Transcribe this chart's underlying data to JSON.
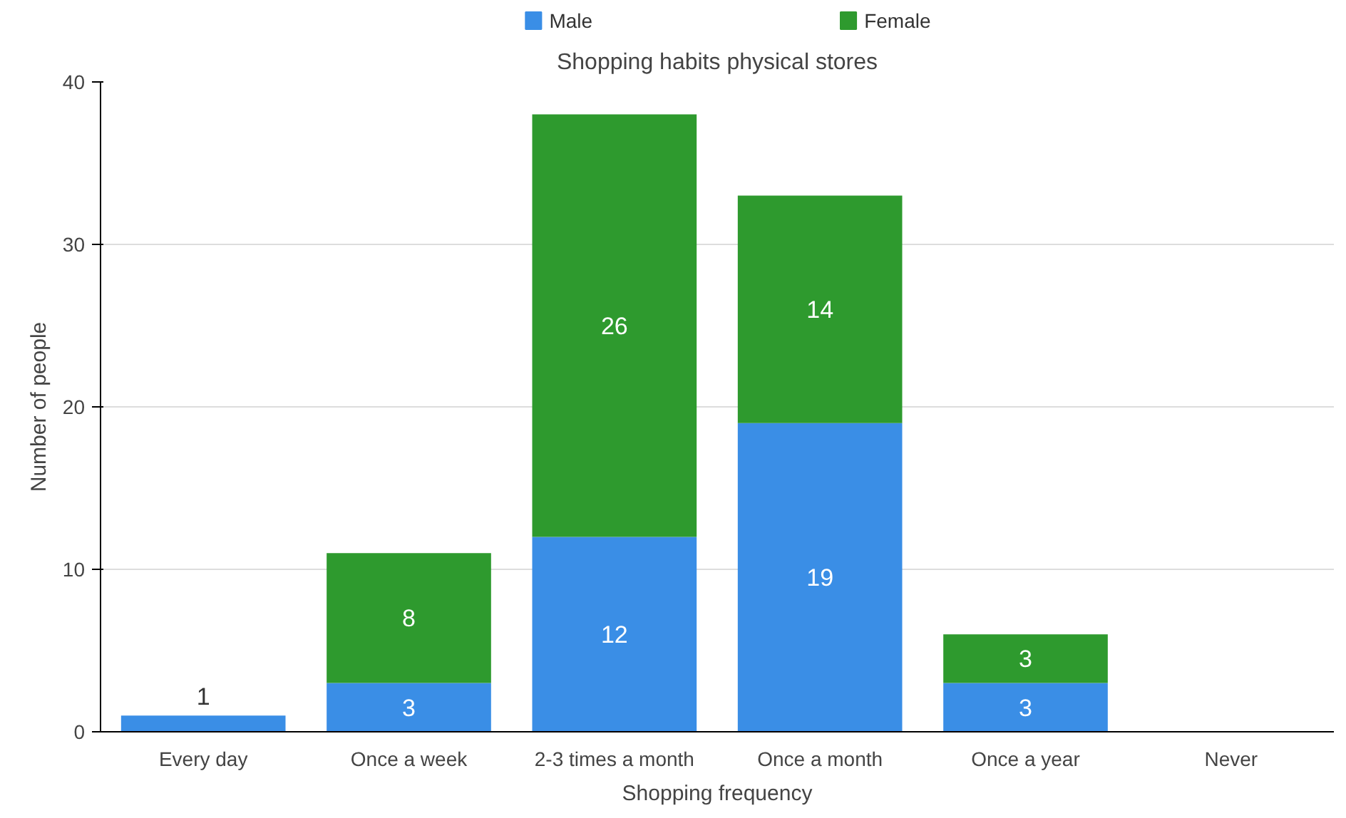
{
  "chart_data": {
    "type": "bar",
    "stacked": true,
    "title": "Shopping habits physical stores",
    "xlabel": "Shopping frequency",
    "ylabel": "Number of people",
    "categories": [
      "Every day",
      "Once a week",
      "2-3 times a month",
      "Once a month",
      "Once a year",
      "Never"
    ],
    "series": [
      {
        "name": "Male",
        "color": "#3a8ee6",
        "values": [
          1,
          3,
          12,
          19,
          3,
          0
        ],
        "value_labels": [
          "1",
          "3",
          "12",
          "19",
          "3",
          null
        ]
      },
      {
        "name": "Female",
        "color": "#2e9a2e",
        "values": [
          0,
          8,
          26,
          14,
          3,
          0
        ],
        "value_labels": [
          null,
          "8",
          "26",
          "14",
          "3",
          null
        ]
      }
    ],
    "ylim": [
      0,
      40
    ],
    "yticks": [
      0,
      10,
      20,
      30,
      40
    ],
    "grid": "y",
    "legend": "top"
  }
}
